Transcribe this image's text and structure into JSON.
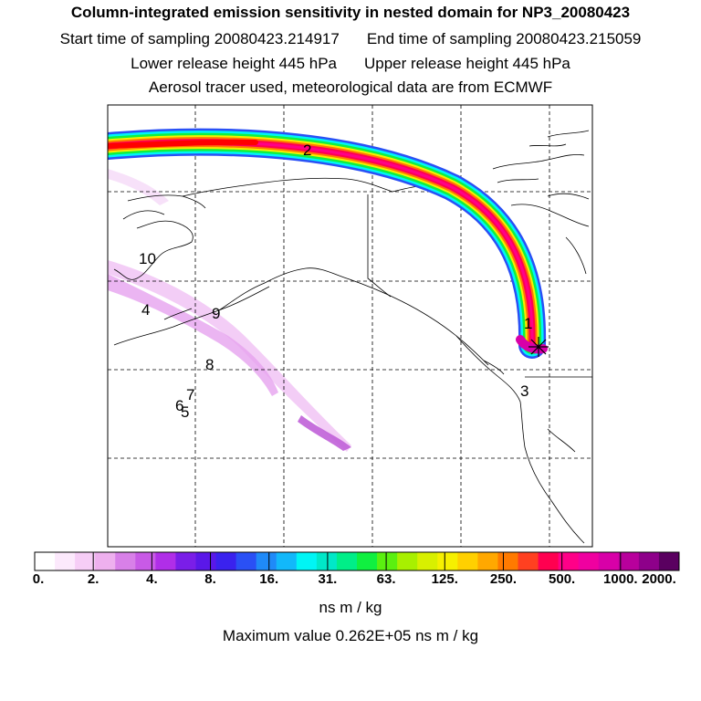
{
  "header": {
    "title": "Column-integrated emission sensitivity in nested domain for NP3_20080423",
    "start_label": "Start time of sampling 20080423.214917",
    "end_label": "End time of sampling 20080423.215059",
    "lower_label": "Lower release height  445 hPa",
    "upper_label": "Upper release height  445 hPa",
    "tracer_label": "Aerosol tracer used, meteorological data are from ECMWF"
  },
  "map": {
    "labels": [
      "1",
      "2",
      "3",
      "4",
      "5",
      "6",
      "7",
      "8",
      "9",
      "10"
    ],
    "release_marker": "asterisk-marker"
  },
  "colorbar": {
    "ticks": [
      "0.",
      "2.",
      "4.",
      "8.",
      "16.",
      "31.",
      "63.",
      "125.",
      "250.",
      "500.",
      "1000.",
      "2000."
    ],
    "colors": [
      "#ffffff",
      "#fce9fc",
      "#f6cdf6",
      "#eeb0ee",
      "#d880e8",
      "#c85ae6",
      "#b02ee8",
      "#7a1ee8",
      "#5a18e8",
      "#3a22ee",
      "#2a50f5",
      "#1f8af8",
      "#12b8fa",
      "#00f5f5",
      "#00e8c8",
      "#00ee88",
      "#10f040",
      "#5af010",
      "#a8f000",
      "#d8f000",
      "#f6f000",
      "#ffd000",
      "#ffa800",
      "#ff7a00",
      "#ff4020",
      "#ff0050",
      "#ff0088",
      "#f000a0",
      "#d800a8",
      "#b8009c",
      "#8e008a",
      "#5a0060"
    ],
    "unit": "ns m / kg",
    "max_value": "Maximum value  0.262E+05 ns m / kg"
  }
}
